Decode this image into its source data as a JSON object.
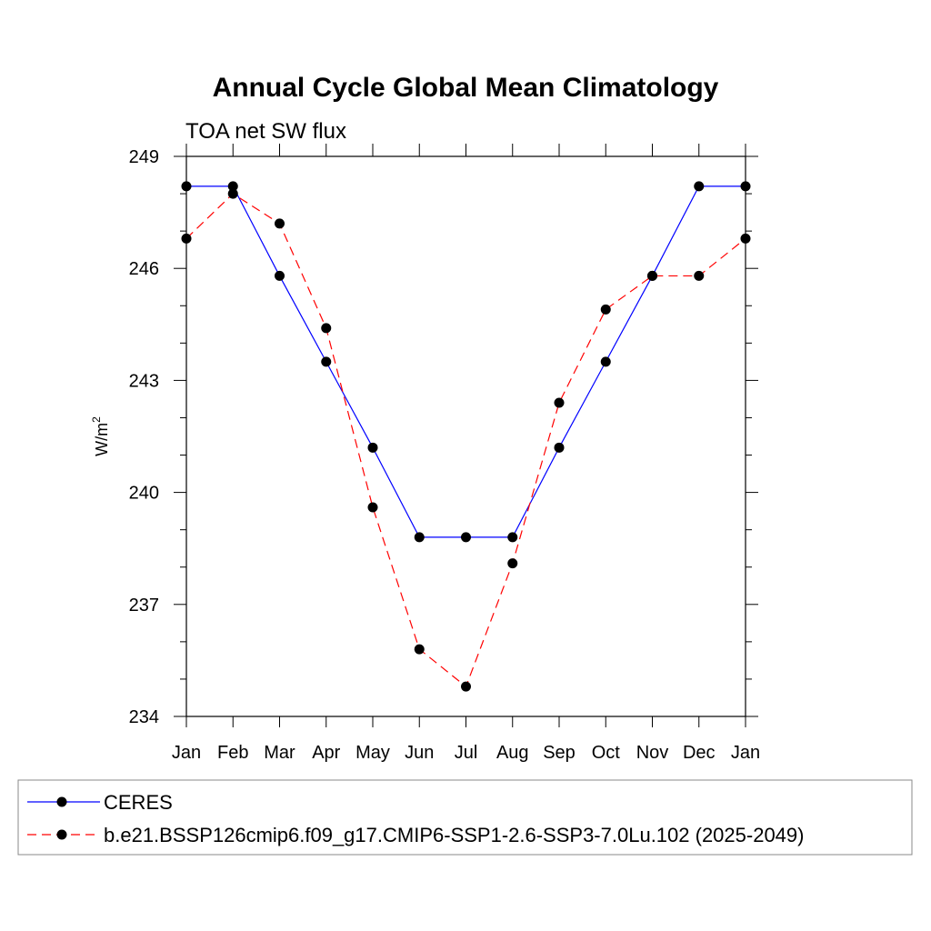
{
  "chart_data": {
    "type": "line",
    "title": "Annual Cycle Global Mean Climatology",
    "subtitle": "TOA net SW flux",
    "xlabel": "",
    "ylabel": "W/m",
    "ylabel_superscript": "2",
    "categories": [
      "Jan",
      "Feb",
      "Mar",
      "Apr",
      "May",
      "Jun",
      "Jul",
      "Aug",
      "Sep",
      "Oct",
      "Nov",
      "Dec",
      "Jan"
    ],
    "ylim": [
      234,
      249
    ],
    "yticks": [
      234,
      237,
      240,
      243,
      246,
      249
    ],
    "grid": false,
    "legend_position": "bottom",
    "series": [
      {
        "name": "CERES",
        "color": "#0000ff",
        "dash": "solid",
        "marker": "circle",
        "values": [
          248.2,
          248.2,
          245.8,
          243.5,
          241.2,
          238.8,
          238.8,
          238.8,
          241.2,
          243.5,
          245.8,
          248.2,
          248.2
        ]
      },
      {
        "name": "b.e21.BSSP126cmip6.f09_g17.CMIP6-SSP1-2.6-SSP3-7.0Lu.102 (2025-2049)",
        "color": "#ff0000",
        "dash": "dashed",
        "marker": "circle",
        "values": [
          246.8,
          248.0,
          247.2,
          244.4,
          239.6,
          235.8,
          234.8,
          238.1,
          242.4,
          244.9,
          245.8,
          245.8,
          246.8
        ]
      }
    ]
  }
}
